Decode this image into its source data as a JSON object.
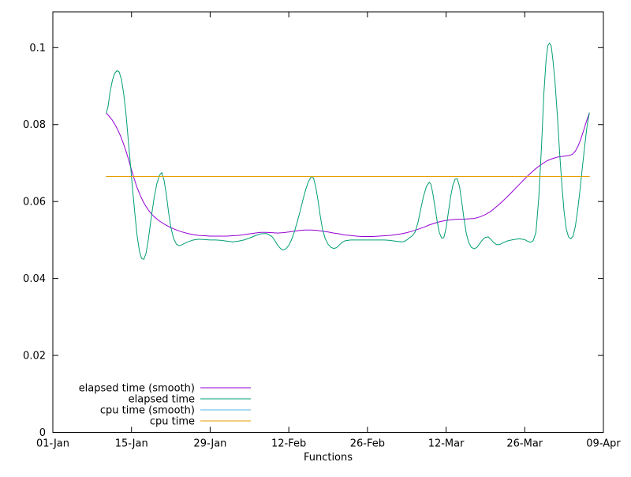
{
  "chart_data": {
    "type": "line",
    "title": "",
    "xlabel": "Functions",
    "ylabel": "",
    "x_unit": "day-of-year",
    "xlim": [
      1,
      99
    ],
    "ylim": [
      0,
      0.1093
    ],
    "grid": false,
    "legend_position": "inside-bottom-left",
    "style": {
      "background": "#ffffff",
      "axis_color": "#000000",
      "text_color": "#000000"
    },
    "x_ticks": [
      {
        "x": 1,
        "label": "01-Jan"
      },
      {
        "x": 15,
        "label": "15-Jan"
      },
      {
        "x": 29,
        "label": "29-Jan"
      },
      {
        "x": 43,
        "label": "12-Feb"
      },
      {
        "x": 57,
        "label": "26-Feb"
      },
      {
        "x": 71,
        "label": "12-Mar"
      },
      {
        "x": 85,
        "label": "26-Mar"
      },
      {
        "x": 99,
        "label": "09-Apr"
      }
    ],
    "y_ticks": [
      {
        "y": 0,
        "label": "0"
      },
      {
        "y": 0.02,
        "label": "0.02"
      },
      {
        "y": 0.04,
        "label": "0.04"
      },
      {
        "y": 0.06,
        "label": "0.06"
      },
      {
        "y": 0.08,
        "label": "0.08"
      },
      {
        "y": 0.1,
        "label": "0.1"
      }
    ],
    "series": [
      {
        "name": "elapsed time (smooth)",
        "color": "#9400d3",
        "points": [
          [
            10.5,
            0.083
          ],
          [
            11,
            0.0822
          ],
          [
            11.5,
            0.0813
          ],
          [
            12,
            0.0802
          ],
          [
            12.5,
            0.0788
          ],
          [
            13,
            0.0772
          ],
          [
            13.5,
            0.0753
          ],
          [
            14,
            0.0732
          ],
          [
            14.5,
            0.0708
          ],
          [
            15,
            0.0682
          ],
          [
            15.5,
            0.0658
          ],
          [
            16,
            0.0636
          ],
          [
            16.5,
            0.0618
          ],
          [
            17,
            0.0602
          ],
          [
            17.5,
            0.0589
          ],
          [
            18,
            0.0578
          ],
          [
            18.5,
            0.0569
          ],
          [
            19,
            0.0561
          ],
          [
            19.5,
            0.0555
          ],
          [
            20,
            0.0549
          ],
          [
            21,
            0.054
          ],
          [
            22,
            0.0532
          ],
          [
            23,
            0.0526
          ],
          [
            24,
            0.0521
          ],
          [
            25,
            0.0517
          ],
          [
            26,
            0.0514
          ],
          [
            27,
            0.0512
          ],
          [
            28,
            0.0511
          ],
          [
            29,
            0.051
          ],
          [
            30,
            0.051
          ],
          [
            31,
            0.051
          ],
          [
            32,
            0.051
          ],
          [
            33,
            0.0511
          ],
          [
            34,
            0.0512
          ],
          [
            35,
            0.0514
          ],
          [
            36,
            0.0516
          ],
          [
            37,
            0.0518
          ],
          [
            38,
            0.052
          ],
          [
            39,
            0.052
          ],
          [
            40,
            0.0519
          ],
          [
            41,
            0.0518
          ],
          [
            42,
            0.0519
          ],
          [
            43,
            0.0521
          ],
          [
            44,
            0.0523
          ],
          [
            45,
            0.0525
          ],
          [
            46,
            0.0526
          ],
          [
            47,
            0.0526
          ],
          [
            48,
            0.0525
          ],
          [
            49,
            0.0523
          ],
          [
            50,
            0.0521
          ],
          [
            51,
            0.0518
          ],
          [
            52,
            0.0516
          ],
          [
            53,
            0.0513
          ],
          [
            54,
            0.0512
          ],
          [
            55,
            0.051
          ],
          [
            56,
            0.0509
          ],
          [
            57,
            0.0509
          ],
          [
            58,
            0.0509
          ],
          [
            59,
            0.051
          ],
          [
            60,
            0.0511
          ],
          [
            61,
            0.0512
          ],
          [
            62,
            0.0514
          ],
          [
            63,
            0.0516
          ],
          [
            64,
            0.0519
          ],
          [
            65,
            0.0523
          ],
          [
            66,
            0.0528
          ],
          [
            67,
            0.0533
          ],
          [
            68,
            0.0539
          ],
          [
            69,
            0.0544
          ],
          [
            70,
            0.0548
          ],
          [
            71,
            0.0551
          ],
          [
            72,
            0.0553
          ],
          [
            73,
            0.0554
          ],
          [
            74,
            0.0554
          ],
          [
            75,
            0.0555
          ],
          [
            76,
            0.0556
          ],
          [
            77,
            0.056
          ],
          [
            78,
            0.0566
          ],
          [
            79,
            0.0575
          ],
          [
            80,
            0.0587
          ],
          [
            81,
            0.06
          ],
          [
            82,
            0.0614
          ],
          [
            83,
            0.0629
          ],
          [
            84,
            0.0644
          ],
          [
            85,
            0.0659
          ],
          [
            86,
            0.0673
          ],
          [
            87,
            0.0686
          ],
          [
            88,
            0.0697
          ],
          [
            89,
            0.0706
          ],
          [
            90,
            0.0712
          ],
          [
            91,
            0.0716
          ],
          [
            92,
            0.0718
          ],
          [
            93,
            0.072
          ],
          [
            93.5,
            0.0723
          ],
          [
            94,
            0.0731
          ],
          [
            94.5,
            0.0744
          ],
          [
            95,
            0.0763
          ],
          [
            95.5,
            0.0786
          ],
          [
            96,
            0.0809
          ],
          [
            96.5,
            0.083
          ]
        ]
      },
      {
        "name": "elapsed time",
        "color": "#009e73",
        "points": [
          [
            10.5,
            0.083
          ],
          [
            10.8,
            0.0845
          ],
          [
            11.2,
            0.0885
          ],
          [
            11.6,
            0.0915
          ],
          [
            12,
            0.0933
          ],
          [
            12.4,
            0.094
          ],
          [
            12.8,
            0.0937
          ],
          [
            13.2,
            0.0918
          ],
          [
            13.6,
            0.0882
          ],
          [
            14,
            0.083
          ],
          [
            14.4,
            0.0765
          ],
          [
            14.8,
            0.0698
          ],
          [
            15.2,
            0.0632
          ],
          [
            15.6,
            0.0568
          ],
          [
            16,
            0.0512
          ],
          [
            16.4,
            0.0472
          ],
          [
            16.8,
            0.0452
          ],
          [
            17.2,
            0.045
          ],
          [
            17.6,
            0.0466
          ],
          [
            18,
            0.0502
          ],
          [
            18.5,
            0.0556
          ],
          [
            19,
            0.0607
          ],
          [
            19.5,
            0.0646
          ],
          [
            20,
            0.0669
          ],
          [
            20.4,
            0.0675
          ],
          [
            20.8,
            0.0655
          ],
          [
            21.2,
            0.0618
          ],
          [
            21.6,
            0.0572
          ],
          [
            22,
            0.0533
          ],
          [
            22.5,
            0.0504
          ],
          [
            23,
            0.0489
          ],
          [
            23.5,
            0.0485
          ],
          [
            24,
            0.0488
          ],
          [
            25,
            0.0495
          ],
          [
            26,
            0.05
          ],
          [
            27,
            0.0502
          ],
          [
            28,
            0.0501
          ],
          [
            29,
            0.05
          ],
          [
            30,
            0.05
          ],
          [
            31,
            0.0499
          ],
          [
            32,
            0.0497
          ],
          [
            33,
            0.0495
          ],
          [
            34,
            0.0497
          ],
          [
            35,
            0.05
          ],
          [
            36,
            0.0505
          ],
          [
            37,
            0.0511
          ],
          [
            38,
            0.0516
          ],
          [
            39,
            0.0517
          ],
          [
            40,
            0.0509
          ],
          [
            40.5,
            0.0499
          ],
          [
            41,
            0.0487
          ],
          [
            41.5,
            0.0478
          ],
          [
            42,
            0.0474
          ],
          [
            42.5,
            0.0477
          ],
          [
            43,
            0.0486
          ],
          [
            43.5,
            0.0501
          ],
          [
            44,
            0.0522
          ],
          [
            44.5,
            0.0547
          ],
          [
            45,
            0.0574
          ],
          [
            45.5,
            0.0603
          ],
          [
            46,
            0.0631
          ],
          [
            46.5,
            0.0652
          ],
          [
            47,
            0.0665
          ],
          [
            47.4,
            0.0661
          ],
          [
            47.8,
            0.0638
          ],
          [
            48.2,
            0.0603
          ],
          [
            48.6,
            0.0563
          ],
          [
            49,
            0.0528
          ],
          [
            49.5,
            0.0503
          ],
          [
            50,
            0.0489
          ],
          [
            50.5,
            0.0481
          ],
          [
            51,
            0.0478
          ],
          [
            51.5,
            0.048
          ],
          [
            52,
            0.0487
          ],
          [
            52.5,
            0.0494
          ],
          [
            53,
            0.0498
          ],
          [
            54,
            0.05
          ],
          [
            56,
            0.05
          ],
          [
            58,
            0.05
          ],
          [
            60,
            0.05
          ],
          [
            61,
            0.0499
          ],
          [
            62,
            0.0497
          ],
          [
            63,
            0.0495
          ],
          [
            63.5,
            0.0496
          ],
          [
            64,
            0.05
          ],
          [
            64.5,
            0.0506
          ],
          [
            65,
            0.0511
          ],
          [
            65.5,
            0.0521
          ],
          [
            66,
            0.0546
          ],
          [
            66.5,
            0.0581
          ],
          [
            67,
            0.0615
          ],
          [
            67.5,
            0.0639
          ],
          [
            68,
            0.065
          ],
          [
            68.3,
            0.0645
          ],
          [
            68.6,
            0.0624
          ],
          [
            69,
            0.0588
          ],
          [
            69.4,
            0.0549
          ],
          [
            69.8,
            0.0519
          ],
          [
            70.2,
            0.0505
          ],
          [
            70.6,
            0.0506
          ],
          [
            71,
            0.0531
          ],
          [
            71.4,
            0.0571
          ],
          [
            71.8,
            0.0612
          ],
          [
            72.2,
            0.0642
          ],
          [
            72.6,
            0.0658
          ],
          [
            73,
            0.0659
          ],
          [
            73.4,
            0.0638
          ],
          [
            73.8,
            0.0598
          ],
          [
            74.2,
            0.0553
          ],
          [
            74.6,
            0.0517
          ],
          [
            75,
            0.0494
          ],
          [
            75.5,
            0.0481
          ],
          [
            76,
            0.0477
          ],
          [
            76.5,
            0.0481
          ],
          [
            77,
            0.0491
          ],
          [
            77.5,
            0.0501
          ],
          [
            78,
            0.0507
          ],
          [
            78.5,
            0.0508
          ],
          [
            79,
            0.0501
          ],
          [
            79.5,
            0.0493
          ],
          [
            80,
            0.0488
          ],
          [
            80.5,
            0.0488
          ],
          [
            81,
            0.0492
          ],
          [
            82,
            0.0498
          ],
          [
            83,
            0.0501
          ],
          [
            84,
            0.0503
          ],
          [
            85,
            0.0501
          ],
          [
            85.5,
            0.0497
          ],
          [
            86,
            0.0494
          ],
          [
            86.5,
            0.0498
          ],
          [
            87,
            0.052
          ],
          [
            87.5,
            0.061
          ],
          [
            88,
            0.075
          ],
          [
            88.4,
            0.088
          ],
          [
            88.8,
            0.097
          ],
          [
            89.1,
            0.1005
          ],
          [
            89.4,
            0.1012
          ],
          [
            89.7,
            0.1005
          ],
          [
            90,
            0.097
          ],
          [
            90.4,
            0.091
          ],
          [
            90.8,
            0.0825
          ],
          [
            91.2,
            0.073
          ],
          [
            91.6,
            0.0645
          ],
          [
            92,
            0.0575
          ],
          [
            92.4,
            0.0528
          ],
          [
            92.8,
            0.0508
          ],
          [
            93.2,
            0.0503
          ],
          [
            93.6,
            0.051
          ],
          [
            94,
            0.0535
          ],
          [
            94.4,
            0.0575
          ],
          [
            94.8,
            0.0625
          ],
          [
            95.2,
            0.068
          ],
          [
            95.6,
            0.0735
          ],
          [
            96,
            0.0785
          ],
          [
            96.3,
            0.0815
          ],
          [
            96.5,
            0.083
          ]
        ]
      },
      {
        "name": "cpu time (smooth)",
        "color": "#56b4e9",
        "points": [
          [
            10.5,
            0.0665
          ],
          [
            96.5,
            0.0665
          ]
        ]
      },
      {
        "name": "cpu time",
        "color": "#e69f00",
        "points": [
          [
            10.5,
            0.0665
          ],
          [
            96.5,
            0.0665
          ]
        ]
      }
    ]
  }
}
